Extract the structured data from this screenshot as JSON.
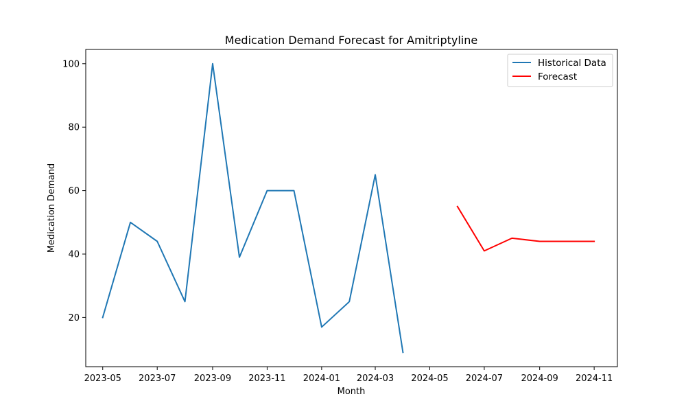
{
  "chart_data": {
    "type": "line",
    "title": "Medication Demand Forecast for Amitriptyline",
    "xlabel": "Month",
    "ylabel": "Medication Demand",
    "xlim": [
      "2023-04-12",
      "2024-11-27"
    ],
    "ylim": [
      4.5,
      104.5
    ],
    "x_ticks": [
      "2023-05",
      "2023-07",
      "2023-09",
      "2023-11",
      "2024-01",
      "2024-03",
      "2024-05",
      "2024-07",
      "2024-09",
      "2024-11"
    ],
    "y_ticks": [
      20,
      40,
      60,
      80,
      100
    ],
    "grid": false,
    "legend_position": "upper right",
    "series": [
      {
        "name": "Historical Data",
        "color": "#1f77b4",
        "x": [
          "2023-05-01",
          "2023-06-01",
          "2023-07-01",
          "2023-08-01",
          "2023-09-01",
          "2023-10-01",
          "2023-11-01",
          "2023-12-01",
          "2024-01-01",
          "2024-02-01",
          "2024-03-01",
          "2024-04-01"
        ],
        "y": [
          20,
          50,
          44,
          25,
          100,
          39,
          60,
          60,
          17,
          25,
          65,
          9
        ]
      },
      {
        "name": "Forecast",
        "color": "#ff0000",
        "x": [
          "2024-06-01",
          "2024-07-01",
          "2024-08-01",
          "2024-09-01",
          "2024-10-01",
          "2024-11-01"
        ],
        "y": [
          55,
          41,
          45,
          44,
          44,
          44
        ]
      }
    ]
  }
}
